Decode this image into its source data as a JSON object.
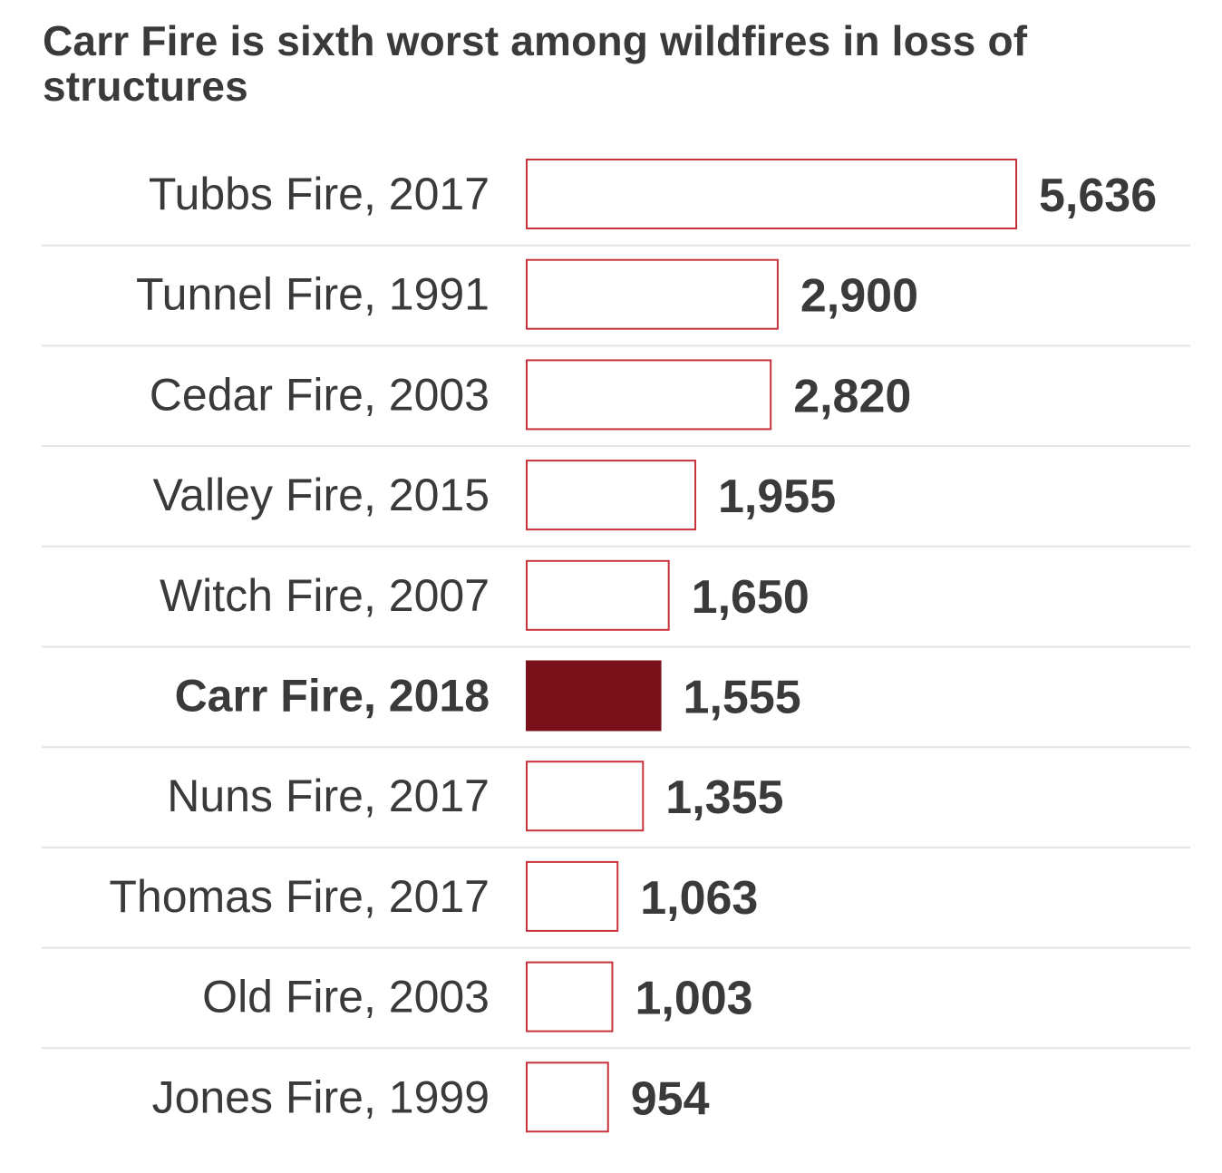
{
  "colors": {
    "highlight_fill": "#7a101a",
    "bar_outline": "#c8323c",
    "separator": "#e3e3e3",
    "text": "#3a3a3a"
  },
  "chart_data": {
    "type": "bar",
    "orientation": "horizontal",
    "title": "Carr Fire is sixth worst among wildfires in loss of structures",
    "xlabel": "",
    "ylabel": "",
    "xlim": [
      0,
      5636
    ],
    "grid": false,
    "highlight": "Carr Fire, 2018",
    "categories": [
      "Tubbs Fire, 2017",
      "Tunnel Fire, 1991",
      "Cedar Fire, 2003",
      "Valley Fire, 2015",
      "Witch Fire, 2007",
      "Carr Fire, 2018",
      "Nuns Fire, 2017",
      "Thomas Fire, 2017",
      "Old Fire, 2003",
      "Jones Fire, 1999"
    ],
    "values": [
      5636,
      2900,
      2820,
      1955,
      1650,
      1555,
      1355,
      1063,
      1003,
      954
    ],
    "value_labels": [
      "5,636",
      "2,900",
      "2,820",
      "1,955",
      "1,650",
      "1,555",
      "1,355",
      "1,063",
      "1,003",
      "954"
    ]
  }
}
